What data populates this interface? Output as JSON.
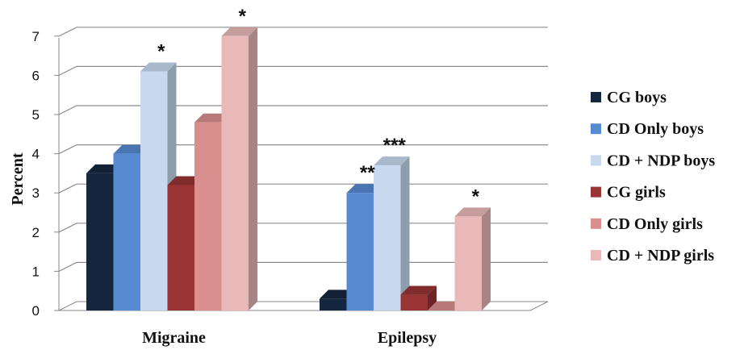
{
  "chart_data": {
    "type": "bar",
    "categories": [
      "Migraine",
      "Epilepsy"
    ],
    "ylabel": "Percent",
    "ylim": [
      0,
      7
    ],
    "yticks": [
      "0",
      "1",
      "2",
      "3",
      "4",
      "5",
      "6",
      "7"
    ],
    "grid": true,
    "legend_position": "right",
    "series": [
      {
        "name": "CG boys",
        "color": "#15273f",
        "values": [
          3.5,
          0.3
        ],
        "labels": [
          "",
          ""
        ]
      },
      {
        "name": "CD Only boys",
        "color": "#568bd2",
        "values": [
          4.0,
          3.0
        ],
        "labels": [
          "",
          "**"
        ]
      },
      {
        "name": "CD + NDP boys",
        "color": "#c7d8ef",
        "values": [
          6.1,
          3.7
        ],
        "labels": [
          "*",
          "***"
        ]
      },
      {
        "name": "CG girls",
        "color": "#983434",
        "values": [
          3.2,
          0.4
        ],
        "labels": [
          "",
          ""
        ]
      },
      {
        "name": "CD Only girls",
        "color": "#d88f8d",
        "values": [
          4.8,
          0.0
        ],
        "labels": [
          "",
          ""
        ]
      },
      {
        "name": "CD + NDP girls",
        "color": "#e8b9b8",
        "values": [
          7.0,
          2.4
        ],
        "labels": [
          "*",
          "*"
        ]
      }
    ]
  }
}
